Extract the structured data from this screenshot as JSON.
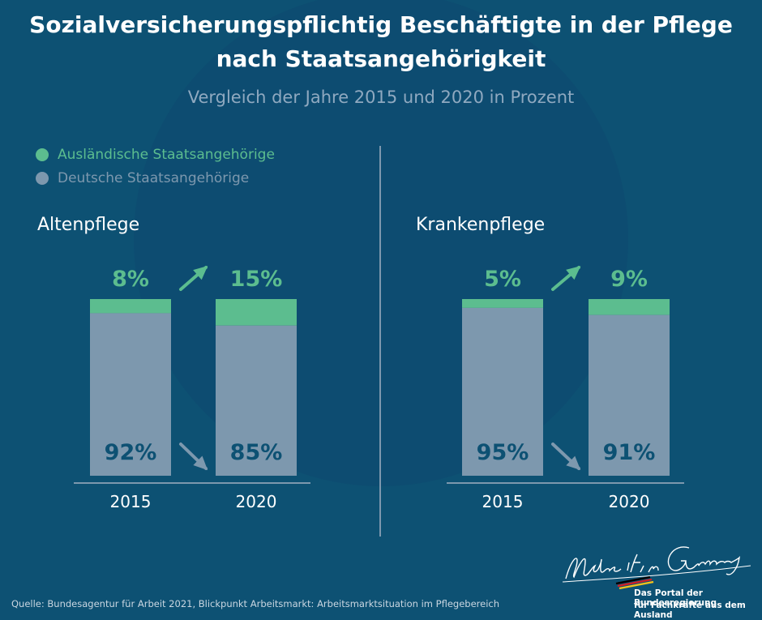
{
  "title_line1": "Sozialversicherungspflichtig Beschäftigte in der Pflege",
  "title_line2": "nach Staatsangehörigkeit",
  "subtitle": "Vergleich der Jahre 2015 und 2020 in Prozent",
  "legend": {
    "foreign": "Ausländische Staatsangehörige",
    "german": "Deutsche Staatsangehörige"
  },
  "colors": {
    "foreign": "#5cbd8f",
    "german": "#7d98ae",
    "german_label": "#0d5173",
    "axis": "#7d98ae"
  },
  "chart_data": [
    {
      "type": "bar",
      "stacked": true,
      "title": "Altenpflege",
      "categories": [
        "2015",
        "2020"
      ],
      "series": [
        {
          "name": "Ausländische Staatsangehörige",
          "values": [
            8,
            15
          ],
          "labels": [
            "8%",
            "15%"
          ]
        },
        {
          "name": "Deutsche Staatsangehörige",
          "values": [
            92,
            85
          ],
          "labels": [
            "92%",
            "85%"
          ]
        }
      ],
      "ylim": [
        0,
        100
      ]
    },
    {
      "type": "bar",
      "stacked": true,
      "title": "Krankenpflege",
      "categories": [
        "2015",
        "2020"
      ],
      "series": [
        {
          "name": "Ausländische Staatsangehörige",
          "values": [
            5,
            9
          ],
          "labels": [
            "5%",
            "9%"
          ]
        },
        {
          "name": "Deutsche Staatsangehörige",
          "values": [
            95,
            91
          ],
          "labels": [
            "95%",
            "91%"
          ]
        }
      ],
      "ylim": [
        0,
        100
      ]
    }
  ],
  "source": "Quelle: Bundesagentur für Arbeit 2021, Blickpunkt Arbeitsmarkt: Arbeitsmarktsituation im Pflegebereich",
  "logo": {
    "signature": "Make it in Germany",
    "line1": "Das Portal der Bundesregierung",
    "line2": "für Fachkräfte aus dem Ausland"
  }
}
